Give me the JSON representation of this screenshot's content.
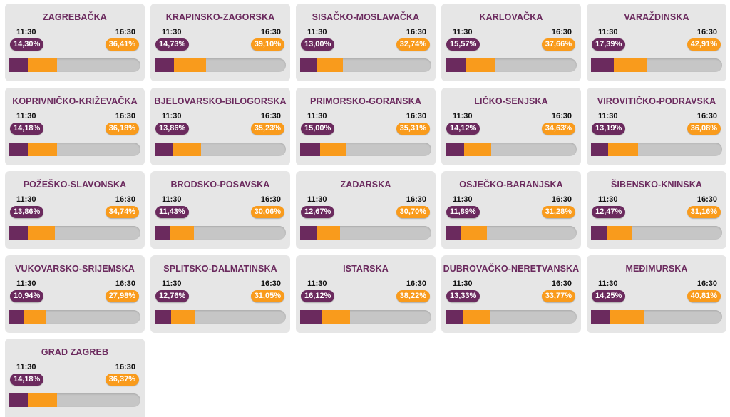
{
  "time_early": "11:30",
  "time_late": "16:30",
  "colors": {
    "early": "#6b2a5e",
    "late": "#f99b1c",
    "track": "#c6c6c6",
    "card": "#e6e6e6"
  },
  "counties": [
    {
      "name": "ZAGREBAČKA",
      "early_label": "14,30%",
      "late_label": "36,41%",
      "early": 14.3,
      "late": 36.41
    },
    {
      "name": "KRAPINSKO-ZAGORSKA",
      "early_label": "14,73%",
      "late_label": "39,10%",
      "early": 14.73,
      "late": 39.1
    },
    {
      "name": "SISAČKO-MOSLAVAČKA",
      "early_label": "13,00%",
      "late_label": "32,74%",
      "early": 13.0,
      "late": 32.74
    },
    {
      "name": "KARLOVAČKA",
      "early_label": "15,57%",
      "late_label": "37,66%",
      "early": 15.57,
      "late": 37.66
    },
    {
      "name": "VARAŽDINSKA",
      "early_label": "17,39%",
      "late_label": "42,91%",
      "early": 17.39,
      "late": 42.91
    },
    {
      "name": "KOPRIVNIČKO-KRIŽEVAČKA",
      "early_label": "14,18%",
      "late_label": "36,18%",
      "early": 14.18,
      "late": 36.18
    },
    {
      "name": "BJELOVARSKO-BILOGORSKA",
      "early_label": "13,86%",
      "late_label": "35,23%",
      "early": 13.86,
      "late": 35.23
    },
    {
      "name": "PRIMORSKO-GORANSKA",
      "early_label": "15,00%",
      "late_label": "35,31%",
      "early": 15.0,
      "late": 35.31
    },
    {
      "name": "LIČKO-SENJSKA",
      "early_label": "14,12%",
      "late_label": "34,63%",
      "early": 14.12,
      "late": 34.63
    },
    {
      "name": "VIROVITIČKO-PODRAVSKA",
      "early_label": "13,19%",
      "late_label": "36,08%",
      "early": 13.19,
      "late": 36.08
    },
    {
      "name": "POŽEŠKO-SLAVONSKA",
      "early_label": "13,86%",
      "late_label": "34,74%",
      "early": 13.86,
      "late": 34.74
    },
    {
      "name": "BRODSKO-POSAVSKA",
      "early_label": "11,43%",
      "late_label": "30,06%",
      "early": 11.43,
      "late": 30.06
    },
    {
      "name": "ZADARSKA",
      "early_label": "12,67%",
      "late_label": "30,70%",
      "early": 12.67,
      "late": 30.7
    },
    {
      "name": "OSJEČKO-BARANJSKA",
      "early_label": "11,89%",
      "late_label": "31,28%",
      "early": 11.89,
      "late": 31.28
    },
    {
      "name": "ŠIBENSKO-KNINSKA",
      "early_label": "12,47%",
      "late_label": "31,16%",
      "early": 12.47,
      "late": 31.16
    },
    {
      "name": "VUKOVARSKO-SRIJEMSKA",
      "early_label": "10,94%",
      "late_label": "27,98%",
      "early": 10.94,
      "late": 27.98
    },
    {
      "name": "SPLITSKO-DALMATINSKA",
      "early_label": "12,76%",
      "late_label": "31,05%",
      "early": 12.76,
      "late": 31.05
    },
    {
      "name": "ISTARSKA",
      "early_label": "16,12%",
      "late_label": "38,22%",
      "early": 16.12,
      "late": 38.22
    },
    {
      "name": "DUBROVAČKO-NERETVANSKA",
      "early_label": "13,33%",
      "late_label": "33,77%",
      "early": 13.33,
      "late": 33.77
    },
    {
      "name": "MEĐIMURSKA",
      "early_label": "14,25%",
      "late_label": "40,81%",
      "early": 14.25,
      "late": 40.81
    },
    {
      "name": "GRAD ZAGREB",
      "early_label": "14,18%",
      "late_label": "36,37%",
      "early": 14.18,
      "late": 36.37
    }
  ]
}
